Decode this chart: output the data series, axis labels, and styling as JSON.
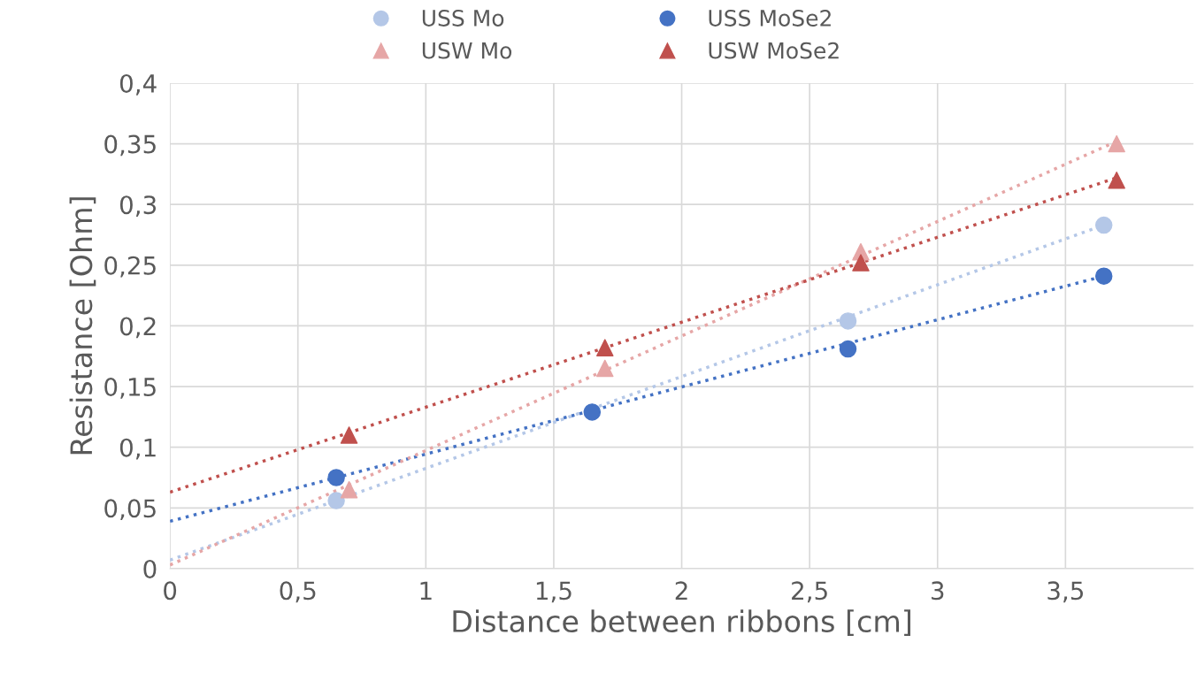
{
  "chart_data": {
    "type": "scatter",
    "xlabel": "Distance between ribbons [cm]",
    "ylabel": "Resistance [Ohm]",
    "xlim": [
      0,
      4
    ],
    "ylim": [
      0,
      0.4
    ],
    "xticks": [
      0,
      {
        "value": 0.5,
        "label": "0,5"
      },
      1,
      {
        "value": 1.5,
        "label": "1,5"
      },
      2,
      {
        "value": 2.5,
        "label": "2,5"
      },
      3,
      {
        "value": 3.5,
        "label": "3,5"
      }
    ],
    "yticks": [
      0,
      {
        "value": 0.05,
        "label": "0,05"
      },
      {
        "value": 0.1,
        "label": "0,1"
      },
      {
        "value": 0.15,
        "label": "0,15"
      },
      {
        "value": 0.2,
        "label": "0,2"
      },
      {
        "value": 0.25,
        "label": "0,25"
      },
      {
        "value": 0.3,
        "label": "0,3"
      },
      {
        "value": 0.35,
        "label": "0,35"
      },
      {
        "value": 0.4,
        "label": "0,4"
      }
    ],
    "grid": true,
    "legend": "top",
    "series": [
      {
        "name": "USS Mo",
        "marker": "circle",
        "color": "#b4c7e7",
        "x": [
          0.65,
          1.65,
          2.65,
          3.65
        ],
        "values": [
          0.056,
          null,
          0.204,
          0.283
        ]
      },
      {
        "name": "USS MoSe2",
        "marker": "circle",
        "color": "#4472c4",
        "x": [
          0.65,
          1.65,
          2.65,
          3.65
        ],
        "values": [
          0.075,
          0.129,
          0.181,
          0.241
        ]
      },
      {
        "name": "USW Mo",
        "marker": "triangle",
        "color": "#e6a6a6",
        "x": [
          0.7,
          1.7,
          2.7,
          3.7
        ],
        "values": [
          0.065,
          0.165,
          0.261,
          0.35
        ]
      },
      {
        "name": "USW MoSe2",
        "marker": "triangle",
        "color": "#c0504d",
        "x": [
          0.7,
          1.7,
          2.7,
          3.7
        ],
        "values": [
          0.11,
          0.182,
          0.252,
          0.32
        ]
      },
      {
        "type": "line",
        "line_style": "dotted",
        "color": "#b4c7e7",
        "x": [
          0,
          3.65
        ],
        "values": [
          0.007,
          0.283
        ]
      },
      {
        "type": "line",
        "line_style": "dotted",
        "color": "#4472c4",
        "x": [
          0,
          3.65
        ],
        "values": [
          0.039,
          0.241
        ]
      },
      {
        "type": "line",
        "line_style": "dotted",
        "color": "#e6a6a6",
        "x": [
          0,
          3.7
        ],
        "values": [
          0.003,
          0.352
        ]
      },
      {
        "type": "line",
        "line_style": "dotted",
        "color": "#c0504d",
        "x": [
          0,
          3.7
        ],
        "values": [
          0.063,
          0.322
        ]
      }
    ]
  }
}
